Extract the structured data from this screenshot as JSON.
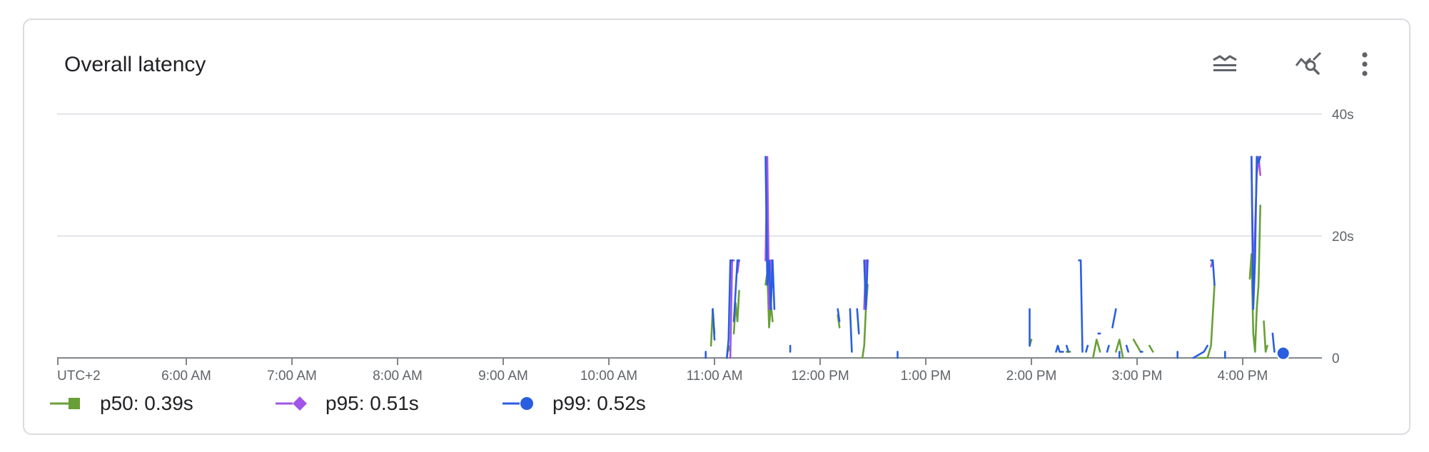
{
  "card": {
    "title": "Overall latency",
    "icons": [
      "legend-lines-icon",
      "explore-chart-icon",
      "more-vert-icon"
    ]
  },
  "legend": [
    {
      "label": "p50: 0.39s",
      "color": "#689f38",
      "marker": "square"
    },
    {
      "label": "p95: 0.51s",
      "color": "#a155e8",
      "marker": "diamond"
    },
    {
      "label": "p99: 0.52s",
      "color": "#2a5ee0",
      "marker": "circle"
    }
  ],
  "chart_data": {
    "type": "line",
    "title": "Overall latency",
    "timezone_label": "UTC+2",
    "x_tick_labels": [
      "6:00 AM",
      "7:00 AM",
      "8:00 AM",
      "9:00 AM",
      "10:00 AM",
      "11:00 AM",
      "12:00 PM",
      "1:00 PM",
      "2:00 PM",
      "3:00 PM",
      "4:00 PM"
    ],
    "y_tick_labels": [
      "40s",
      "20s",
      "0"
    ],
    "ylim": [
      0,
      40
    ],
    "xlim": [
      "4:47 AM",
      "4:47 PM"
    ],
    "grid": true,
    "legend_position": "bottom-left",
    "series": [
      {
        "name": "p50",
        "color": "#689f38",
        "segments": [
          [
            [
              "10:58 AM",
              2
            ],
            [
              "10:59 AM",
              8
            ],
            [
              "11:00 AM",
              4
            ]
          ],
          [
            [
              "11:07 AM",
              0
            ],
            [
              "11:08 AM",
              2
            ],
            [
              "11:09 AM",
              1
            ]
          ],
          [
            [
              "11:11 AM",
              4
            ],
            [
              "11:12 AM",
              9
            ],
            [
              "11:13 AM",
              6
            ],
            [
              "11:14 AM",
              11
            ]
          ],
          [
            [
              "11:29 AM",
              12
            ],
            [
              "11:30 AM",
              14
            ],
            [
              "11:31 AM",
              5
            ],
            [
              "11:32 AM",
              9
            ],
            [
              "11:33 AM",
              6
            ]
          ],
          [
            [
              "12:10 PM",
              7
            ],
            [
              "12:11 PM",
              5
            ]
          ],
          [
            [
              "12:24 PM",
              0
            ],
            [
              "12:25 PM",
              2
            ],
            [
              "12:26 PM",
              8
            ],
            [
              "12:27 PM",
              12
            ]
          ],
          [
            [
              "1:59 PM",
              2
            ],
            [
              "2:00 PM",
              3
            ]
          ],
          [
            [
              "2:20 PM",
              1
            ],
            [
              "2:22 PM",
              1
            ]
          ],
          [
            [
              "2:35 PM",
              0
            ],
            [
              "2:37 PM",
              3
            ],
            [
              "2:39 PM",
              1
            ]
          ],
          [
            [
              "2:48 PM",
              1
            ],
            [
              "2:50 PM",
              3
            ],
            [
              "2:52 PM",
              0
            ]
          ],
          [
            [
              "2:58 PM",
              3
            ],
            [
              "3:00 PM",
              2
            ],
            [
              "3:02 PM",
              1
            ]
          ],
          [
            [
              "3:07 PM",
              2
            ],
            [
              "3:09 PM",
              1
            ]
          ],
          [
            [
              "3:35 PM",
              0
            ],
            [
              "3:40 PM",
              0
            ],
            [
              "3:42 PM",
              2
            ],
            [
              "3:44 PM",
              12
            ]
          ],
          [
            [
              "4:04 PM",
              13
            ],
            [
              "4:05 PM",
              17
            ],
            [
              "4:06 PM",
              4
            ],
            [
              "4:07 PM",
              1
            ],
            [
              "4:08 PM",
              8
            ],
            [
              "4:09 PM",
              12
            ],
            [
              "4:10 PM",
              25
            ]
          ],
          [
            [
              "4:12 PM",
              6
            ],
            [
              "4:13 PM",
              1
            ],
            [
              "4:14 PM",
              2
            ]
          ]
        ]
      },
      {
        "name": "p95",
        "color": "#a155e8",
        "segments": [
          [
            [
              "11:09 AM",
              0
            ],
            [
              "11:10 AM",
              16
            ],
            [
              "11:11 AM",
              16
            ]
          ],
          [
            [
              "11:13 AM",
              14
            ],
            [
              "11:14 AM",
              16
            ]
          ],
          [
            [
              "11:29 AM",
              16
            ],
            [
              "11:30 AM",
              33
            ],
            [
              "11:31 AM",
              8
            ],
            [
              "11:32 AM",
              16
            ],
            [
              "11:33 AM",
              16
            ]
          ],
          [
            [
              "12:25 PM",
              8
            ],
            [
              "12:26 PM",
              16
            ],
            [
              "12:27 PM",
              16
            ]
          ],
          [
            [
              "3:42 PM",
              15
            ],
            [
              "3:43 PM",
              16
            ]
          ],
          [
            [
              "4:05 PM",
              33
            ],
            [
              "4:06 PM",
              12
            ],
            [
              "4:08 PM",
              30
            ],
            [
              "4:09 PM",
              33
            ],
            [
              "4:10 PM",
              30
            ]
          ]
        ]
      },
      {
        "name": "p99",
        "color": "#2a5ee0",
        "segments": [
          [
            [
              "10:55 AM",
              1
            ],
            [
              "10:55 AM",
              0
            ]
          ],
          [
            [
              "10:59 AM",
              8
            ],
            [
              "11:00 AM",
              3
            ]
          ],
          [
            [
              "11:07 AM",
              0
            ],
            [
              "11:08 AM",
              3
            ],
            [
              "11:09 AM",
              16
            ],
            [
              "11:10 AM",
              16
            ]
          ],
          [
            [
              "11:11 AM",
              6
            ],
            [
              "11:13 AM",
              16
            ],
            [
              "11:14 AM",
              16
            ]
          ],
          [
            [
              "11:29 AM",
              33
            ],
            [
              "11:30 AM",
              12
            ],
            [
              "11:31 AM",
              16
            ],
            [
              "11:32 AM",
              8
            ],
            [
              "11:33 AM",
              16
            ],
            [
              "11:34 AM",
              8
            ]
          ],
          [
            [
              "11:43 AM",
              2
            ],
            [
              "11:43 AM",
              1
            ]
          ],
          [
            [
              "12:10 PM",
              8
            ],
            [
              "12:11 PM",
              6
            ]
          ],
          [
            [
              "12:17 PM",
              8
            ],
            [
              "12:18 PM",
              1
            ]
          ],
          [
            [
              "12:21 PM",
              8
            ],
            [
              "12:22 PM",
              4
            ]
          ],
          [
            [
              "12:25 PM",
              16
            ],
            [
              "12:26 PM",
              8
            ],
            [
              "12:27 PM",
              16
            ]
          ],
          [
            [
              "12:44 PM",
              1
            ],
            [
              "12:44 PM",
              0
            ]
          ],
          [
            [
              "1:59 PM",
              8
            ],
            [
              "1:59 PM",
              2
            ]
          ],
          [
            [
              "2:14 PM",
              1
            ],
            [
              "2:15 PM",
              2
            ],
            [
              "2:16 PM",
              1
            ],
            [
              "2:18 PM",
              1
            ]
          ],
          [
            [
              "2:20 PM",
              2
            ],
            [
              "2:21 PM",
              1
            ]
          ],
          [
            [
              "2:27 PM",
              16
            ],
            [
              "2:28 PM",
              16
            ],
            [
              "2:29 PM",
              1
            ]
          ],
          [
            [
              "2:31 PM",
              1
            ],
            [
              "2:32 PM",
              2
            ]
          ],
          [
            [
              "2:38 PM",
              4
            ],
            [
              "2:39 PM",
              4
            ]
          ],
          [
            [
              "2:43 PM",
              1
            ],
            [
              "2:44 PM",
              2
            ]
          ],
          [
            [
              "2:46 PM",
              5
            ],
            [
              "2:48 PM",
              8
            ]
          ],
          [
            [
              "2:50 PM",
              0
            ],
            [
              "2:50 PM",
              1
            ]
          ],
          [
            [
              "2:54 PM",
              2
            ],
            [
              "2:55 PM",
              1
            ]
          ],
          [
            [
              "3:02 PM",
              1
            ],
            [
              "3:03 PM",
              1
            ]
          ],
          [
            [
              "3:23 PM",
              1
            ],
            [
              "3:23 PM",
              0
            ]
          ],
          [
            [
              "3:32 PM",
              0
            ],
            [
              "3:38 PM",
              1
            ],
            [
              "3:40 PM",
              2
            ]
          ],
          [
            [
              "3:42 PM",
              16
            ],
            [
              "3:43 PM",
              16
            ],
            [
              "3:44 PM",
              12
            ]
          ],
          [
            [
              "3:50 PM",
              1
            ],
            [
              "3:50 PM",
              0
            ]
          ],
          [
            [
              "4:05 PM",
              33
            ],
            [
              "4:06 PM",
              8
            ],
            [
              "4:07 PM",
              16
            ],
            [
              "4:08 PM",
              33
            ],
            [
              "4:09 PM",
              32
            ],
            [
              "4:10 PM",
              33
            ]
          ],
          [
            [
              "4:17 PM",
              4
            ],
            [
              "4:18 PM",
              1
            ]
          ]
        ]
      }
    ],
    "highlight_point": {
      "series": "p99",
      "x": "4:23 PM",
      "y": 0.52
    }
  }
}
